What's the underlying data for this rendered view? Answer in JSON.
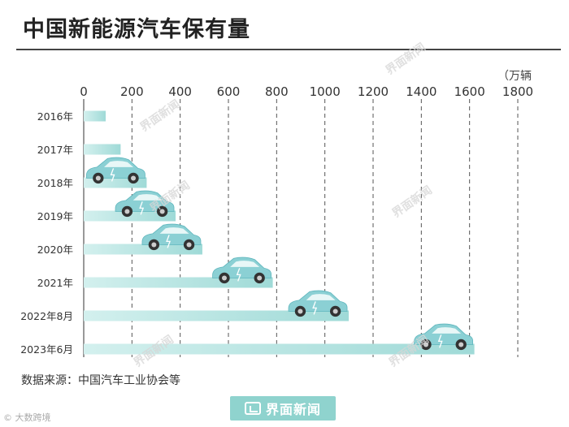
{
  "header": {
    "title": "中国新能源汽车保有量"
  },
  "chart_data": {
    "type": "bar",
    "orientation": "horizontal",
    "unit": "（万辆",
    "xlim": [
      0,
      1800
    ],
    "ticks": [
      0,
      200,
      400,
      600,
      800,
      1000,
      1200,
      1400,
      1600,
      1800
    ],
    "categories": [
      "2016年",
      "2017年",
      "2018年",
      "2019年",
      "2020年",
      "2021年",
      "2022年8月",
      "2023年6月"
    ],
    "values": [
      91,
      153,
      261,
      381,
      492,
      784,
      1099,
      1620
    ],
    "grid": "vertical-dashed"
  },
  "footer": {
    "source": "数据来源：中国汽车工业协会等",
    "brand": "界面新闻",
    "corner_mark": "大数跨境"
  },
  "watermark": "界面新闻",
  "colors": {
    "bar": "#a6dedb",
    "car": "#8bd0d4",
    "brand": "#8fd3ce",
    "grid": "#555555"
  }
}
